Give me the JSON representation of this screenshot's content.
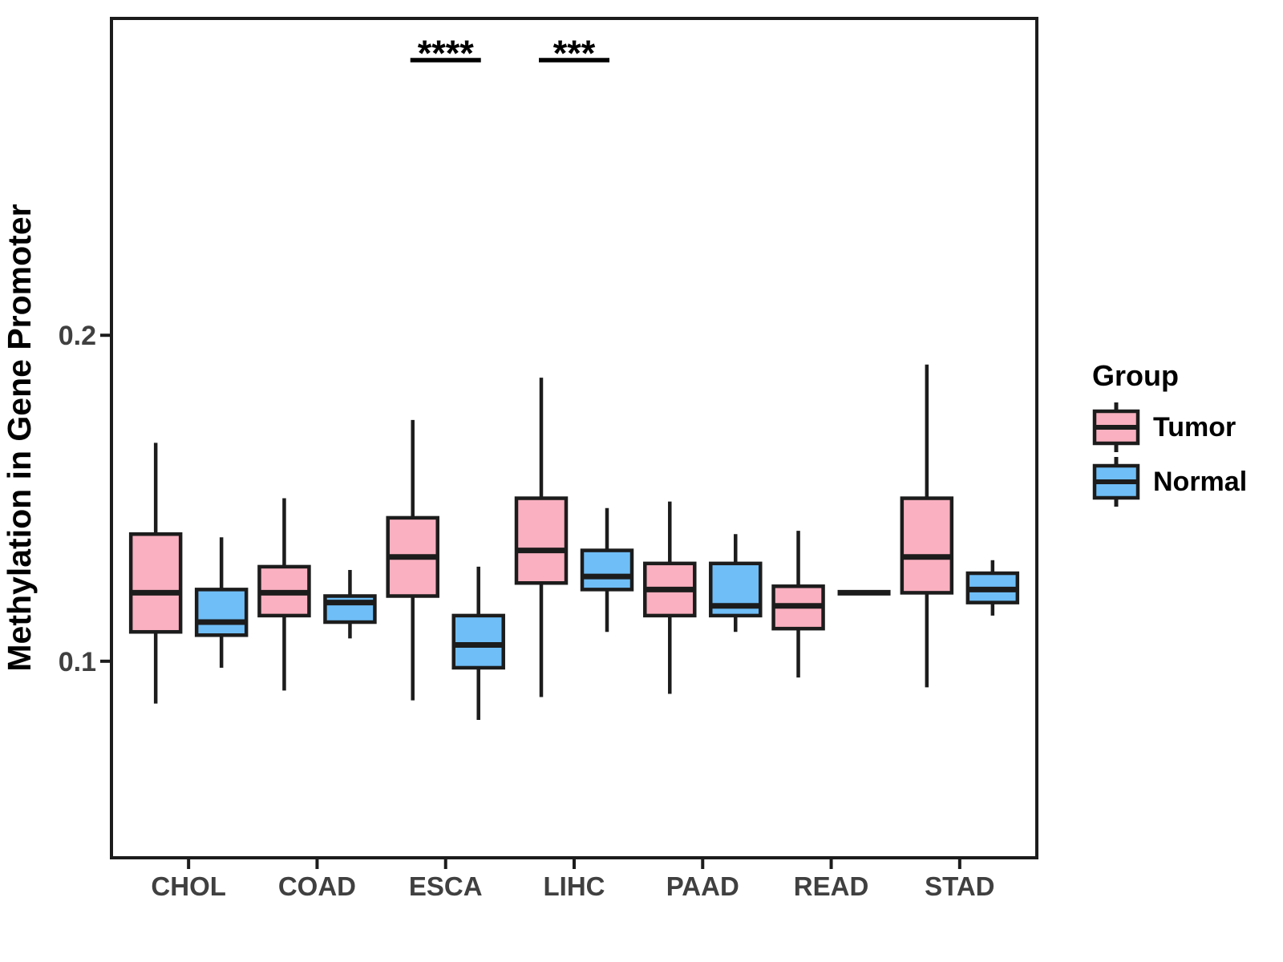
{
  "legend": {
    "title": "Group"
  },
  "chart_data": {
    "type": "boxplot",
    "title": "",
    "xlabel": "",
    "ylabel": "Methylation in Gene Promoter",
    "categories": [
      "CHOL",
      "COAD",
      "ESCA",
      "LIHC",
      "PAAD",
      "READ",
      "STAD"
    ],
    "groups": [
      {
        "name": "Tumor",
        "color": "#FAB0C0"
      },
      {
        "name": "Normal",
        "color": "#6FBEF7"
      }
    ],
    "series": [
      {
        "name": "Tumor",
        "boxes": [
          {
            "category": "CHOL",
            "whisker_low": 0.087,
            "q1": 0.109,
            "median": 0.121,
            "q3": 0.139,
            "whisker_high": 0.167
          },
          {
            "category": "COAD",
            "whisker_low": 0.091,
            "q1": 0.114,
            "median": 0.121,
            "q3": 0.129,
            "whisker_high": 0.15
          },
          {
            "category": "ESCA",
            "whisker_low": 0.088,
            "q1": 0.12,
            "median": 0.132,
            "q3": 0.144,
            "whisker_high": 0.174
          },
          {
            "category": "LIHC",
            "whisker_low": 0.089,
            "q1": 0.124,
            "median": 0.134,
            "q3": 0.15,
            "whisker_high": 0.187
          },
          {
            "category": "PAAD",
            "whisker_low": 0.09,
            "q1": 0.114,
            "median": 0.122,
            "q3": 0.13,
            "whisker_high": 0.149
          },
          {
            "category": "READ",
            "whisker_low": 0.095,
            "q1": 0.11,
            "median": 0.117,
            "q3": 0.123,
            "whisker_high": 0.14
          },
          {
            "category": "STAD",
            "whisker_low": 0.092,
            "q1": 0.121,
            "median": 0.132,
            "q3": 0.15,
            "whisker_high": 0.191
          }
        ]
      },
      {
        "name": "Normal",
        "boxes": [
          {
            "category": "CHOL",
            "whisker_low": 0.098,
            "q1": 0.108,
            "median": 0.112,
            "q3": 0.122,
            "whisker_high": 0.138
          },
          {
            "category": "COAD",
            "whisker_low": 0.107,
            "q1": 0.112,
            "median": 0.118,
            "q3": 0.12,
            "whisker_high": 0.128
          },
          {
            "category": "ESCA",
            "whisker_low": 0.082,
            "q1": 0.098,
            "median": 0.105,
            "q3": 0.114,
            "whisker_high": 0.129
          },
          {
            "category": "LIHC",
            "whisker_low": 0.109,
            "q1": 0.122,
            "median": 0.126,
            "q3": 0.134,
            "whisker_high": 0.147
          },
          {
            "category": "PAAD",
            "whisker_low": 0.109,
            "q1": 0.114,
            "median": 0.117,
            "q3": 0.13,
            "whisker_high": 0.139
          },
          {
            "category": "READ",
            "median": 0.121,
            "degenerate": true
          },
          {
            "category": "STAD",
            "whisker_low": 0.114,
            "q1": 0.118,
            "median": 0.122,
            "q3": 0.127,
            "whisker_high": 0.131
          }
        ]
      }
    ],
    "yticks": [
      {
        "value": 0.1,
        "label": "0.1"
      },
      {
        "value": 0.2,
        "label": "0.2"
      }
    ],
    "ylim": [
      0.0397,
      0.2972
    ],
    "annotations": [
      {
        "category": "ESCA",
        "label": "****",
        "bar_value": 0.2844,
        "text_value": 0.2827
      },
      {
        "category": "LIHC",
        "label": "***",
        "bar_value": 0.2844,
        "text_value": 0.2827
      }
    ],
    "legend_position": "right",
    "grid": false,
    "line_color": "#1C1C1C",
    "tick_label_color": "#404040"
  }
}
